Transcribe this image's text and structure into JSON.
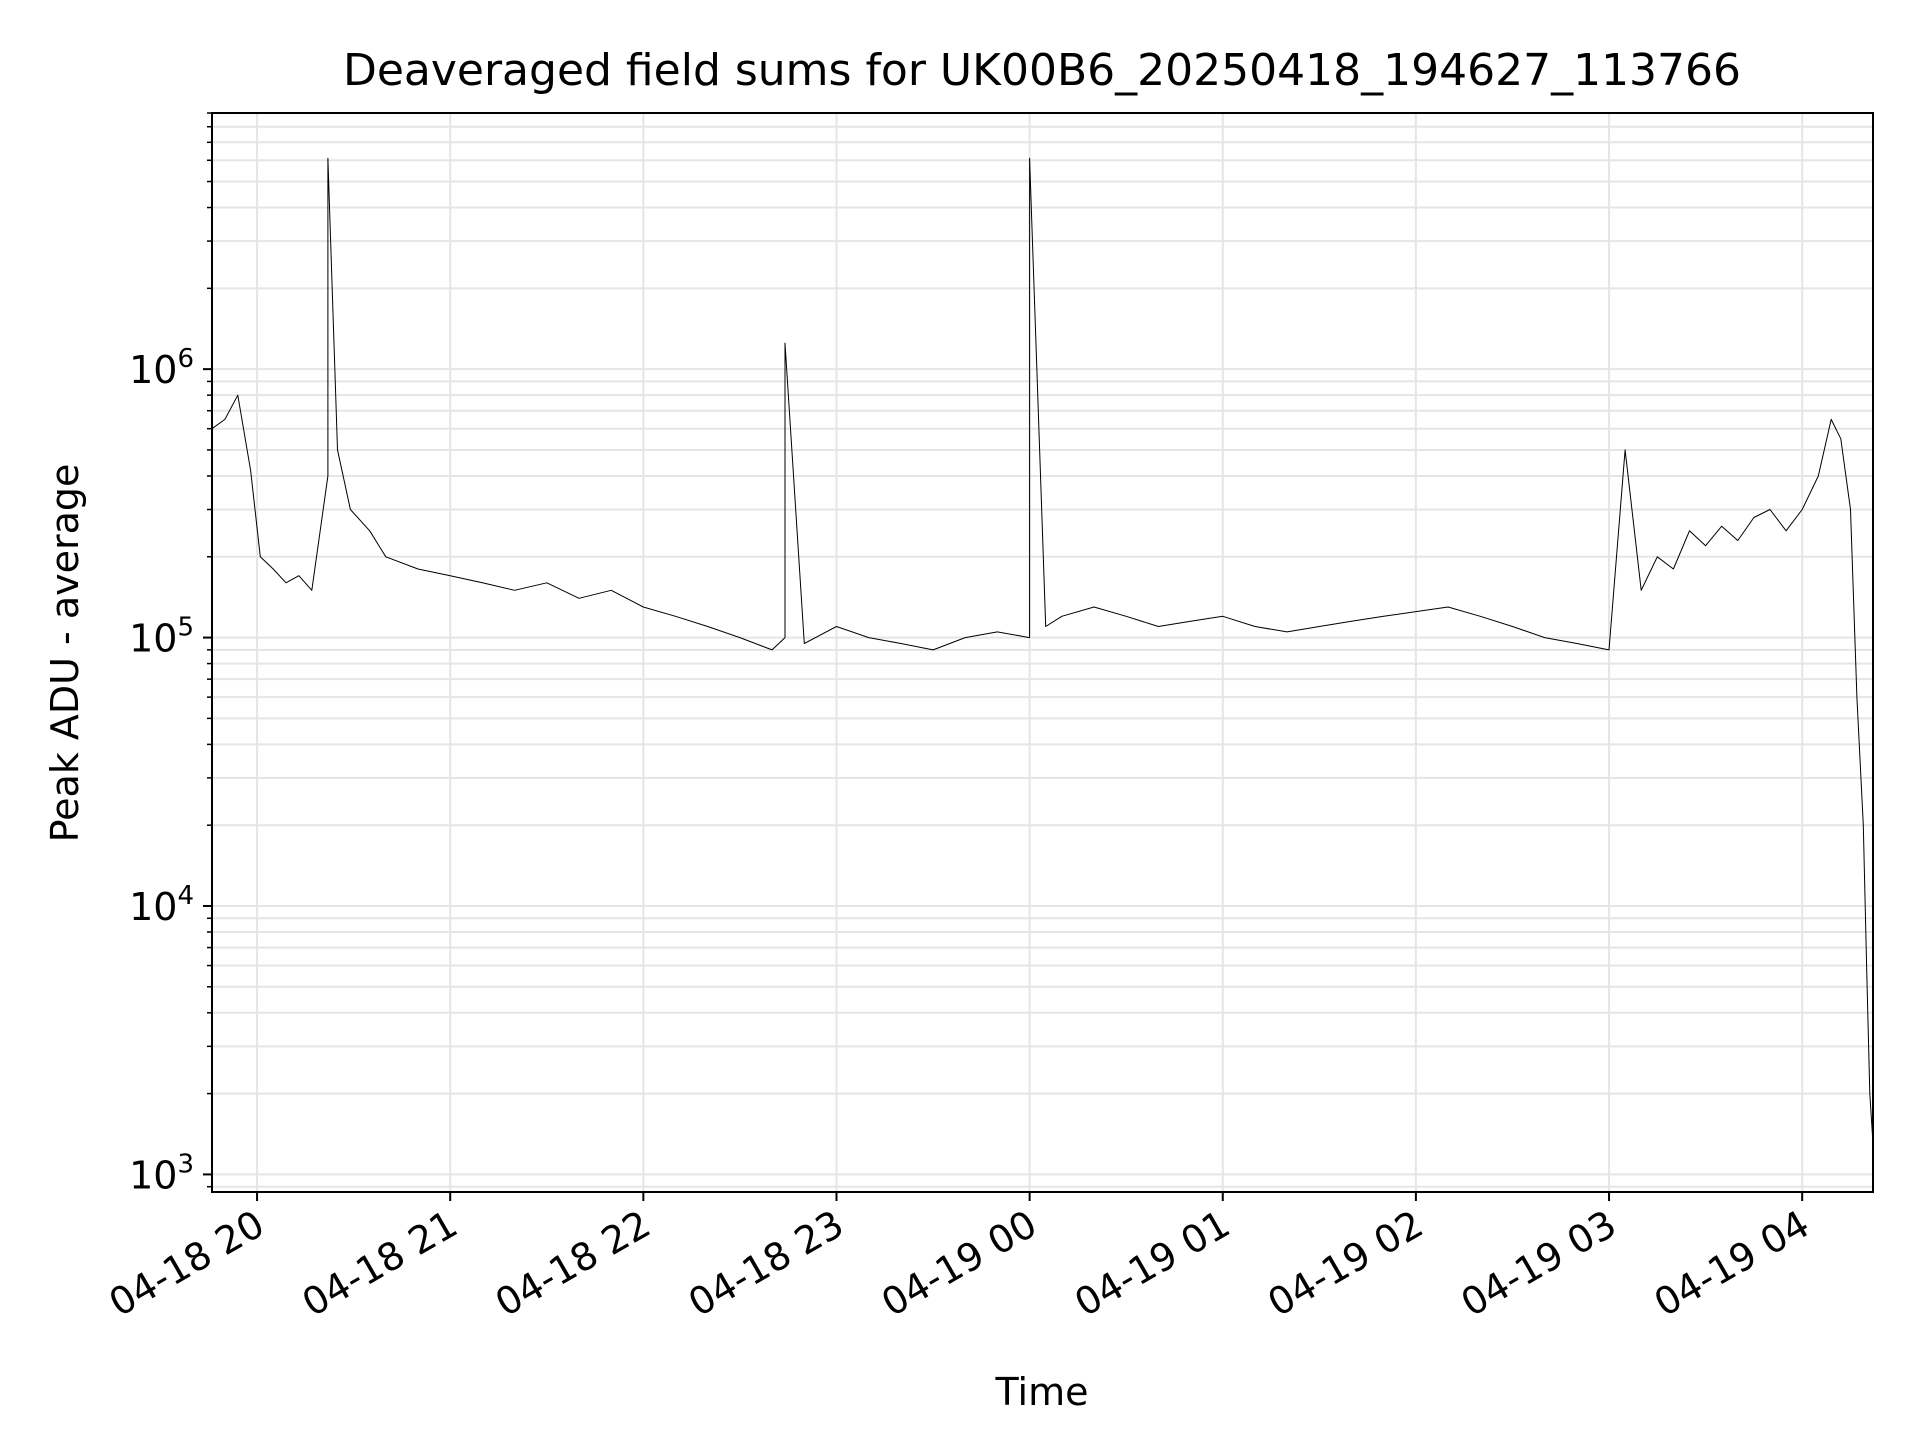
{
  "chart_data": {
    "type": "line",
    "title": "Deaveraged field sums for UK00B6_20250418_194627_113766",
    "xlabel": "Time",
    "ylabel": "Peak ADU - average",
    "yscale": "log",
    "ylim": [
      860,
      9000000
    ],
    "y_ticks": [
      {
        "value": 1000,
        "label": "10^3"
      },
      {
        "value": 10000,
        "label": "10^4"
      },
      {
        "value": 100000,
        "label": "10^5"
      },
      {
        "value": 1000000,
        "label": "10^6"
      }
    ],
    "x_range": [
      "2025-04-18 19:46",
      "2025-04-19 04:22"
    ],
    "x_ticks": [
      {
        "value": "2025-04-18 20:00",
        "label": "04-18 20"
      },
      {
        "value": "2025-04-18 21:00",
        "label": "04-18 21"
      },
      {
        "value": "2025-04-18 22:00",
        "label": "04-18 22"
      },
      {
        "value": "2025-04-18 23:00",
        "label": "04-18 23"
      },
      {
        "value": "2025-04-19 00:00",
        "label": "04-19 00"
      },
      {
        "value": "2025-04-19 01:00",
        "label": "04-19 01"
      },
      {
        "value": "2025-04-19 02:00",
        "label": "04-19 02"
      },
      {
        "value": "2025-04-19 03:00",
        "label": "04-19 03"
      },
      {
        "value": "2025-04-19 04:00",
        "label": "04-19 04"
      }
    ],
    "grid": true,
    "line_color": "#000000",
    "series": [
      {
        "x": [
          "2025-04-18 19:46",
          "2025-04-18 19:50",
          "2025-04-18 19:54",
          "2025-04-18 19:58",
          "2025-04-18 20:01",
          "2025-04-18 20:05",
          "2025-04-18 20:09",
          "2025-04-18 20:13",
          "2025-04-18 20:17",
          "2025-04-18 20:22",
          "2025-04-18 20:22",
          "2025-04-18 20:25",
          "2025-04-18 20:29",
          "2025-04-18 20:35",
          "2025-04-18 20:40",
          "2025-04-18 20:50",
          "2025-04-18 21:00",
          "2025-04-18 21:10",
          "2025-04-18 21:20",
          "2025-04-18 21:30",
          "2025-04-18 21:40",
          "2025-04-18 21:50",
          "2025-04-18 22:00",
          "2025-04-18 22:10",
          "2025-04-18 22:20",
          "2025-04-18 22:30",
          "2025-04-18 22:40",
          "2025-04-18 22:44",
          "2025-04-18 22:44",
          "2025-04-18 22:50",
          "2025-04-18 23:00",
          "2025-04-18 23:10",
          "2025-04-18 23:20",
          "2025-04-18 23:30",
          "2025-04-18 23:40",
          "2025-04-18 23:50",
          "2025-04-19 00:00",
          "2025-04-19 00:00",
          "2025-04-19 00:05",
          "2025-04-19 00:10",
          "2025-04-19 00:20",
          "2025-04-19 00:30",
          "2025-04-19 00:40",
          "2025-04-19 00:50",
          "2025-04-19 01:00",
          "2025-04-19 01:10",
          "2025-04-19 01:20",
          "2025-04-19 01:30",
          "2025-04-19 01:40",
          "2025-04-19 01:50",
          "2025-04-19 02:00",
          "2025-04-19 02:10",
          "2025-04-19 02:20",
          "2025-04-19 02:30",
          "2025-04-19 02:40",
          "2025-04-19 02:50",
          "2025-04-19 03:00",
          "2025-04-19 03:05",
          "2025-04-19 03:10",
          "2025-04-19 03:15",
          "2025-04-19 03:20",
          "2025-04-19 03:25",
          "2025-04-19 03:30",
          "2025-04-19 03:35",
          "2025-04-19 03:40",
          "2025-04-19 03:45",
          "2025-04-19 03:50",
          "2025-04-19 03:55",
          "2025-04-19 04:00",
          "2025-04-19 04:05",
          "2025-04-19 04:09",
          "2025-04-19 04:12",
          "2025-04-19 04:15",
          "2025-04-19 04:17",
          "2025-04-19 04:19",
          "2025-04-19 04:20",
          "2025-04-19 04:21",
          "2025-04-19 04:22"
        ],
        "y": [
          600000,
          650000,
          800000,
          420000,
          200000,
          180000,
          160000,
          170000,
          150000,
          400000,
          6100000,
          500000,
          300000,
          250000,
          200000,
          180000,
          170000,
          160000,
          150000,
          160000,
          140000,
          150000,
          130000,
          120000,
          110000,
          100000,
          90000,
          100000,
          1250000,
          95000,
          110000,
          100000,
          95000,
          90000,
          100000,
          105000,
          100000,
          6100000,
          110000,
          120000,
          130000,
          120000,
          110000,
          115000,
          120000,
          110000,
          105000,
          110000,
          115000,
          120000,
          125000,
          130000,
          120000,
          110000,
          100000,
          95000,
          90000,
          500000,
          150000,
          200000,
          180000,
          250000,
          220000,
          260000,
          230000,
          280000,
          300000,
          250000,
          300000,
          400000,
          650000,
          550000,
          300000,
          60000,
          20000,
          6000,
          2000,
          1300
        ]
      }
    ]
  }
}
